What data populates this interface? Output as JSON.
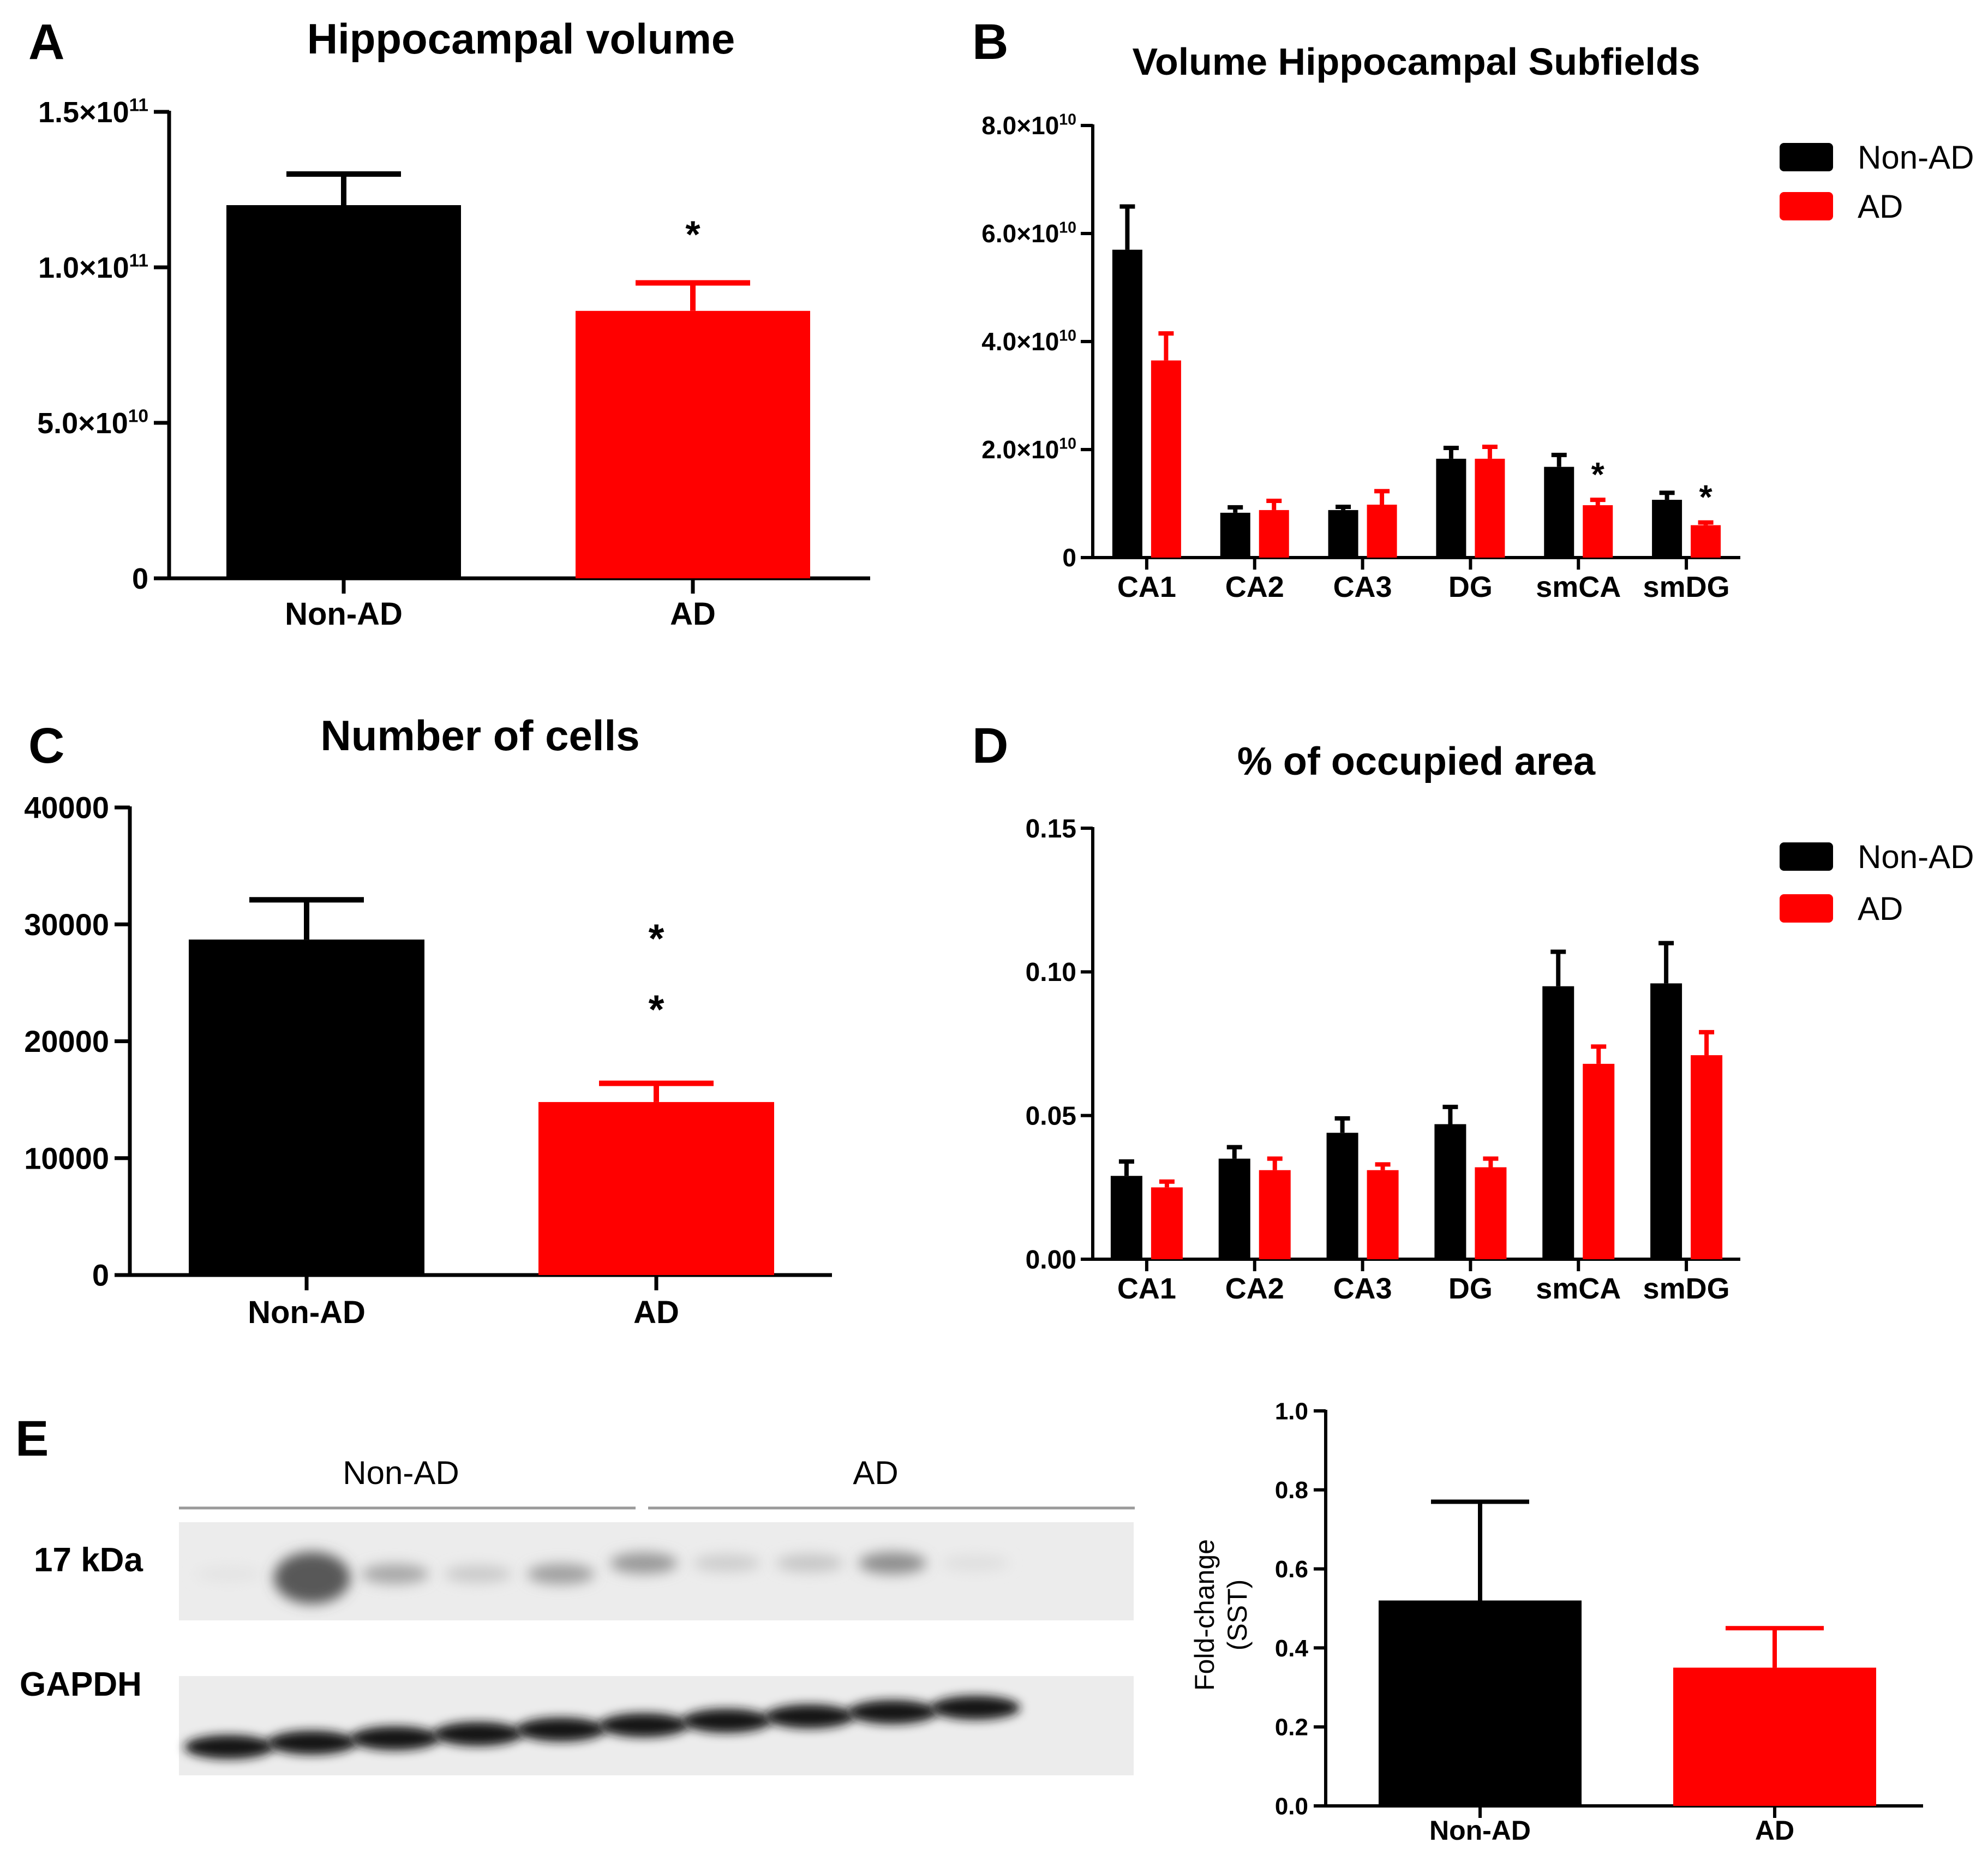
{
  "colors": {
    "non_ad": "#000000",
    "ad": "#ff0000",
    "axis": "#000000",
    "blot_bg": "#ececec"
  },
  "panels": {
    "A": {
      "letter": "A"
    },
    "B": {
      "letter": "B"
    },
    "C": {
      "letter": "C"
    },
    "D": {
      "letter": "D"
    },
    "E": {
      "letter": "E"
    }
  },
  "legend": {
    "non_ad": "Non-AD",
    "ad": "AD"
  },
  "western_blot": {
    "group_labels": [
      "Non-AD",
      "AD"
    ],
    "band_labels": [
      "17 kDa",
      "GAPDH"
    ],
    "lanes": 10,
    "sst_band_intensity": [
      0.05,
      0.98,
      0.45,
      0.22,
      0.5,
      0.55,
      0.2,
      0.25,
      0.62,
      0.08
    ],
    "gapdh_band_intensity": [
      0.9,
      0.92,
      0.9,
      0.88,
      0.9,
      0.88,
      0.9,
      0.9,
      0.9,
      0.88
    ]
  },
  "chart_data": [
    {
      "id": "A",
      "type": "bar",
      "title": "Hippocampal volume",
      "categories": [
        "Non-AD",
        "AD"
      ],
      "values": [
        120000000000,
        86000000000
      ],
      "errors": [
        10000000000,
        9000000000
      ],
      "ylim": [
        0,
        150000000000
      ],
      "ticks": [
        0,
        50000000000,
        100000000000,
        150000000000
      ],
      "tick_labels": [
        {
          "m": "0",
          "e": ""
        },
        {
          "m": "5.0×10",
          "e": "10"
        },
        {
          "m": "1.0×10",
          "e": "11"
        },
        {
          "m": "1.5×10",
          "e": "11"
        }
      ],
      "significance": [
        "",
        "*"
      ],
      "xlabel": "",
      "ylabel": ""
    },
    {
      "id": "B",
      "type": "bar",
      "title": "Volume Hippocampal Subfields",
      "categories": [
        "CA1",
        "CA2",
        "CA3",
        "DG",
        "smCA",
        "smDG"
      ],
      "series": [
        {
          "name": "Non-AD",
          "values": [
            57000000000.0,
            8300000000.0,
            8800000000.0,
            18300000000.0,
            16800000000.0,
            10700000000.0
          ],
          "errors": [
            8000000000.0,
            1000000000.0,
            600000000.0,
            2000000000.0,
            2200000000.0,
            1300000000.0
          ]
        },
        {
          "name": "AD",
          "values": [
            36500000000.0,
            8800000000.0,
            9800000000.0,
            18300000000.0,
            9700000000.0,
            6000000000.0
          ],
          "errors": [
            5000000000.0,
            1700000000.0,
            2500000000.0,
            2200000000.0,
            1000000000.0,
            500000000.0
          ]
        }
      ],
      "ylim": [
        0,
        80000000000
      ],
      "ticks": [
        0,
        20000000000,
        40000000000,
        60000000000,
        80000000000
      ],
      "tick_labels": [
        {
          "m": "0",
          "e": ""
        },
        {
          "m": "2.0×10",
          "e": "10"
        },
        {
          "m": "4.0×10",
          "e": "10"
        },
        {
          "m": "6.0×10",
          "e": "10"
        },
        {
          "m": "8.0×10",
          "e": "10"
        }
      ],
      "significance": [
        "",
        "",
        "",
        "",
        "*",
        "*"
      ],
      "legend": "top-right"
    },
    {
      "id": "C",
      "type": "bar",
      "title": "Number of cells",
      "categories": [
        "Non-AD",
        "AD"
      ],
      "values": [
        28700,
        14800
      ],
      "errors": [
        3400,
        1600
      ],
      "ylim": [
        0,
        40000
      ],
      "ticks": [
        0,
        10000,
        20000,
        30000,
        40000
      ],
      "tick_labels": [
        {
          "m": "0",
          "e": ""
        },
        {
          "m": "10000",
          "e": ""
        },
        {
          "m": "20000",
          "e": ""
        },
        {
          "m": "30000",
          "e": ""
        },
        {
          "m": "40000",
          "e": ""
        }
      ],
      "significance": [
        "",
        "**"
      ]
    },
    {
      "id": "D",
      "type": "bar",
      "title": "% of occupied area",
      "categories": [
        "CA1",
        "CA2",
        "CA3",
        "DG",
        "smCA",
        "smDG"
      ],
      "series": [
        {
          "name": "Non-AD",
          "values": [
            0.029,
            0.035,
            0.044,
            0.047,
            0.095,
            0.096
          ],
          "errors": [
            0.005,
            0.004,
            0.005,
            0.006,
            0.012,
            0.014
          ]
        },
        {
          "name": "AD",
          "values": [
            0.025,
            0.031,
            0.031,
            0.032,
            0.068,
            0.071
          ],
          "errors": [
            0.002,
            0.004,
            0.002,
            0.003,
            0.006,
            0.008
          ]
        }
      ],
      "ylim": [
        0,
        0.15
      ],
      "ticks": [
        0,
        0.05,
        0.1,
        0.15
      ],
      "tick_labels": [
        {
          "m": "0.00",
          "e": ""
        },
        {
          "m": "0.05",
          "e": ""
        },
        {
          "m": "0.10",
          "e": ""
        },
        {
          "m": "0.15",
          "e": ""
        }
      ],
      "significance": [
        "",
        "",
        "",
        "",
        "",
        ""
      ],
      "legend": "top-right"
    },
    {
      "id": "E",
      "type": "bar",
      "title": "",
      "categories": [
        "Non-AD",
        "AD"
      ],
      "values": [
        0.52,
        0.35
      ],
      "errors": [
        0.25,
        0.1
      ],
      "ylim": [
        0,
        1.0
      ],
      "ticks": [
        0,
        0.2,
        0.4,
        0.6,
        0.8,
        1.0
      ],
      "tick_labels": [
        {
          "m": "0.0",
          "e": ""
        },
        {
          "m": "0.2",
          "e": ""
        },
        {
          "m": "0.4",
          "e": ""
        },
        {
          "m": "0.6",
          "e": ""
        },
        {
          "m": "0.8",
          "e": ""
        },
        {
          "m": "1.0",
          "e": ""
        }
      ],
      "ylabel": [
        "Fold-change",
        "(SST)"
      ],
      "significance": [
        "",
        ""
      ]
    }
  ]
}
